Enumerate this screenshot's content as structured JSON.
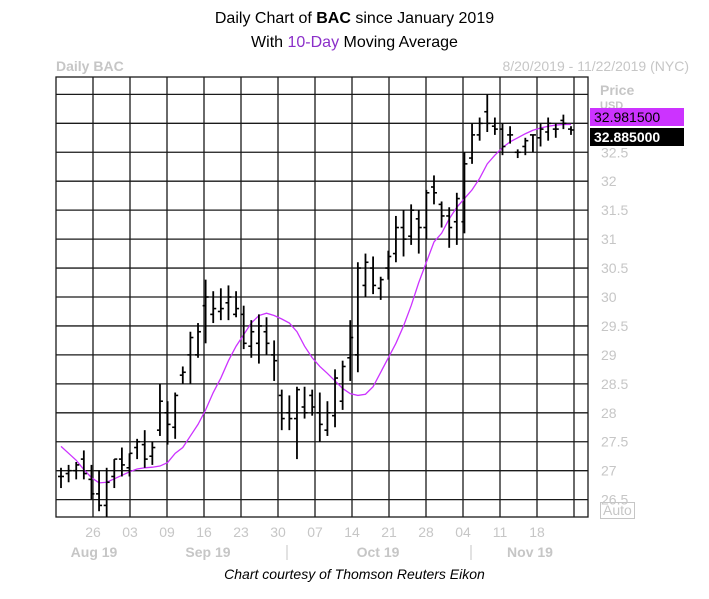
{
  "title_line1_pre": "Daily Chart of ",
  "title_ticker": "BAC",
  "title_line1_post": " since January 2019",
  "title_line2_pre": "With ",
  "title_line2_ma": "10-Day",
  "title_line2_post": " Moving Average",
  "header_left": "Daily BAC",
  "header_right": "8/20/2019 - 11/22/2019 (NYC)",
  "axis_title": "Price",
  "axis_unit": "USD",
  "ma_value_label": "32.981500",
  "last_value_label": "32.885000",
  "auto_label": "Auto",
  "credit": "Chart courtesy of Thomson Reuters Eikon",
  "colors": {
    "bars": "#000000",
    "ma": "#cc33ff",
    "grid": "#1a1a1a",
    "muted": "#c6c6c6"
  },
  "chart_data": {
    "type": "bar",
    "subtype": "ohlc",
    "y_ticks": [
      26.5,
      27,
      27.5,
      28,
      28.5,
      29,
      29.5,
      30,
      30.5,
      31,
      31.5,
      32,
      32.5
    ],
    "ylim": [
      26.2,
      33.8
    ],
    "x_tick_labels": [
      "26",
      "03",
      "09",
      "16",
      "23",
      "30",
      "07",
      "14",
      "21",
      "28",
      "04",
      "11",
      "18"
    ],
    "month_labels": [
      "Aug 19",
      "Sep 19",
      "Oct 19",
      "Nov 19"
    ],
    "grid": true,
    "dates": [
      "2019-08-20",
      "2019-08-21",
      "2019-08-22",
      "2019-08-23",
      "2019-08-26",
      "2019-08-27",
      "2019-08-28",
      "2019-08-29",
      "2019-08-30",
      "2019-09-03",
      "2019-09-04",
      "2019-09-05",
      "2019-09-06",
      "2019-09-09",
      "2019-09-10",
      "2019-09-11",
      "2019-09-12",
      "2019-09-13",
      "2019-09-16",
      "2019-09-17",
      "2019-09-18",
      "2019-09-19",
      "2019-09-20",
      "2019-09-23",
      "2019-09-24",
      "2019-09-25",
      "2019-09-26",
      "2019-09-27",
      "2019-09-30",
      "2019-10-01",
      "2019-10-02",
      "2019-10-03",
      "2019-10-04",
      "2019-10-07",
      "2019-10-08",
      "2019-10-09",
      "2019-10-10",
      "2019-10-11",
      "2019-10-14",
      "2019-10-15",
      "2019-10-16",
      "2019-10-17",
      "2019-10-18",
      "2019-10-21",
      "2019-10-22",
      "2019-10-23",
      "2019-10-24",
      "2019-10-25",
      "2019-10-28",
      "2019-10-29",
      "2019-10-30",
      "2019-10-31",
      "2019-11-01",
      "2019-11-04",
      "2019-11-05",
      "2019-11-06",
      "2019-11-07",
      "2019-11-08",
      "2019-11-11",
      "2019-11-12",
      "2019-11-13",
      "2019-11-14",
      "2019-11-15",
      "2019-11-18",
      "2019-11-19",
      "2019-11-20",
      "2019-11-21",
      "2019-11-22"
    ],
    "high": [
      27.05,
      27.1,
      27.15,
      27.35,
      27.1,
      27.0,
      27.05,
      27.2,
      27.4,
      27.3,
      27.55,
      27.7,
      27.5,
      28.5,
      28.2,
      28.35,
      28.8,
      29.4,
      29.55,
      30.3,
      30.1,
      30.15,
      30.2,
      30.1,
      29.85,
      29.6,
      29.7,
      29.65,
      29.25,
      28.4,
      28.3,
      28.45,
      28.45,
      28.4,
      28.35,
      28.2,
      28.75,
      28.9,
      29.6,
      30.6,
      30.75,
      30.7,
      30.35,
      30.8,
      31.4,
      31.5,
      31.6,
      31.5,
      31.85,
      32.1,
      31.65,
      31.55,
      31.8,
      32.5,
      33.0,
      33.1,
      33.5,
      33.1,
      33.0,
      32.95,
      32.55,
      32.75,
      32.8,
      33.0,
      33.1,
      33.0,
      33.15,
      32.95
    ],
    "low": [
      26.7,
      26.8,
      26.85,
      26.85,
      26.5,
      26.3,
      26.2,
      26.7,
      26.9,
      26.9,
      27.2,
      27.05,
      27.1,
      27.6,
      27.45,
      27.55,
      28.5,
      28.5,
      28.95,
      29.2,
      29.55,
      29.6,
      29.6,
      29.65,
      29.1,
      28.95,
      28.85,
      29.0,
      28.55,
      27.7,
      27.7,
      27.2,
      27.9,
      27.95,
      27.5,
      27.6,
      27.75,
      28.05,
      28.55,
      28.7,
      30.0,
      30.05,
      29.95,
      30.3,
      30.6,
      30.7,
      30.9,
      30.75,
      31.0,
      31.6,
      31.2,
      30.85,
      30.9,
      31.1,
      32.3,
      32.7,
      32.85,
      32.8,
      32.45,
      32.65,
      32.4,
      32.45,
      32.5,
      32.6,
      32.7,
      32.75,
      32.9,
      32.8
    ],
    "open": [
      26.9,
      26.95,
      27.0,
      27.2,
      26.85,
      26.6,
      26.4,
      26.9,
      27.2,
      27.05,
      27.4,
      27.45,
      27.25,
      27.7,
      28.0,
      27.75,
      28.65,
      29.0,
      29.0,
      29.85,
      29.7,
      29.75,
      29.9,
      29.7,
      29.7,
      29.15,
      29.2,
      29.4,
      29.0,
      28.3,
      28.0,
      27.9,
      28.1,
      28.3,
      28.0,
      27.7,
      27.95,
      28.2,
      28.95,
      29.0,
      30.2,
      30.5,
      30.15,
      30.5,
      30.75,
      31.2,
      31.05,
      31.35,
      31.2,
      31.9,
      31.6,
      31.4,
      31.3,
      31.3,
      32.4,
      32.8,
      33.2,
      32.95,
      32.9,
      32.8,
      32.5,
      32.6,
      32.8,
      32.75,
      32.85,
      32.9,
      33.05,
      32.9
    ],
    "close": [
      26.9,
      27.0,
      27.1,
      26.95,
      26.6,
      26.4,
      26.8,
      27.2,
      27.1,
      27.3,
      27.5,
      27.2,
      27.4,
      28.2,
      27.8,
      28.3,
      28.7,
      29.3,
      29.4,
      30.0,
      29.8,
      29.8,
      30.0,
      29.8,
      29.2,
      29.4,
      29.5,
      29.2,
      28.9,
      27.9,
      27.9,
      28.4,
      28.0,
      28.1,
      27.8,
      28.0,
      28.6,
      28.8,
      29.3,
      30.5,
      30.6,
      30.2,
      30.3,
      30.7,
      31.2,
      31.0,
      31.5,
      31.2,
      31.8,
      31.8,
      31.4,
      31.2,
      31.7,
      32.3,
      32.8,
      33.0,
      33.0,
      32.9,
      32.6,
      32.8,
      32.5,
      32.7,
      32.8,
      32.9,
      33.0,
      32.9,
      33.0,
      32.885
    ],
    "ma_10": [
      27.42,
      27.3,
      27.18,
      27.02,
      26.88,
      26.79,
      26.8,
      26.86,
      26.92,
      26.98,
      27.03,
      27.05,
      27.06,
      27.08,
      27.14,
      27.3,
      27.4,
      27.6,
      27.8,
      28.05,
      28.35,
      28.6,
      28.9,
      29.15,
      29.35,
      29.55,
      29.68,
      29.72,
      29.68,
      29.62,
      29.55,
      29.4,
      29.15,
      28.95,
      28.8,
      28.68,
      28.55,
      28.42,
      28.33,
      28.3,
      28.32,
      28.45,
      28.7,
      28.95,
      29.2,
      29.5,
      29.85,
      30.25,
      30.6,
      30.95,
      31.1,
      31.35,
      31.55,
      31.7,
      31.85,
      32.05,
      32.3,
      32.45,
      32.58,
      32.68,
      32.75,
      32.82,
      32.88,
      32.92,
      32.95,
      32.97,
      32.98,
      32.98
    ]
  }
}
